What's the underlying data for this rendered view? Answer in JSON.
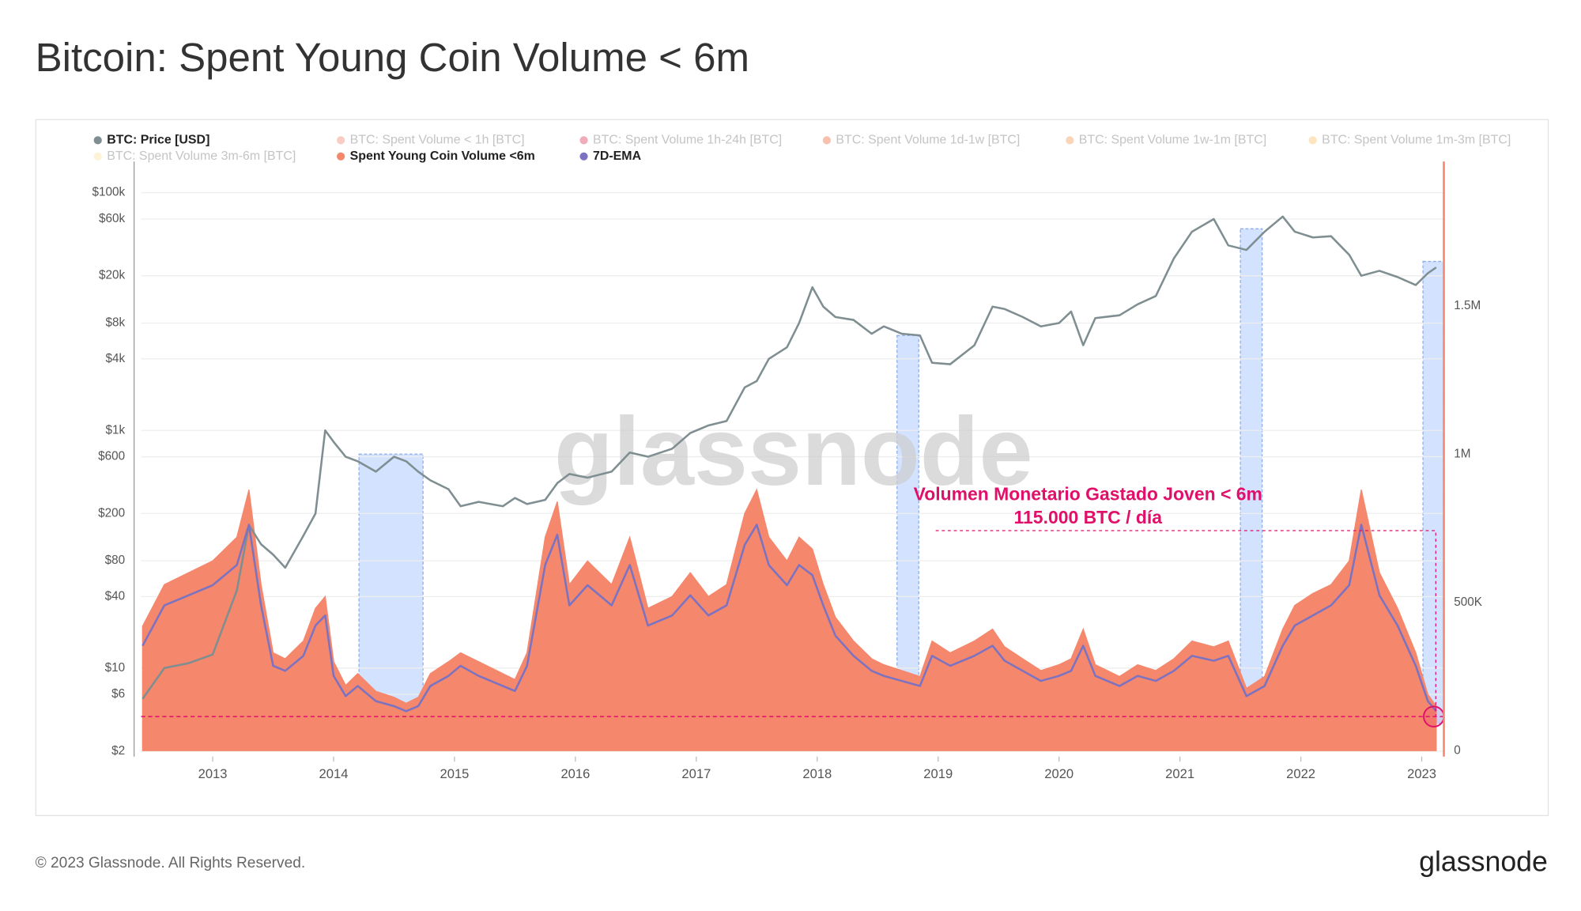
{
  "chart_data": {
    "type": "line",
    "title": "Bitcoin: Spent Young Coin Volume < 6m",
    "x": [
      2012.42,
      2012.6,
      2012.8,
      2013.0,
      2013.2,
      2013.3,
      2013.4,
      2013.5,
      2013.6,
      2013.75,
      2013.85,
      2013.93,
      2014.0,
      2014.1,
      2014.2,
      2014.35,
      2014.5,
      2014.6,
      2014.7,
      2014.8,
      2014.95,
      2015.05,
      2015.2,
      2015.4,
      2015.5,
      2015.6,
      2015.75,
      2015.85,
      2015.95,
      2016.1,
      2016.3,
      2016.45,
      2016.6,
      2016.8,
      2016.95,
      2017.1,
      2017.25,
      2017.4,
      2017.5,
      2017.6,
      2017.75,
      2017.85,
      2017.96,
      2018.05,
      2018.15,
      2018.3,
      2018.45,
      2018.55,
      2018.7,
      2018.85,
      2018.95,
      2019.1,
      2019.3,
      2019.45,
      2019.55,
      2019.7,
      2019.85,
      2020.0,
      2020.1,
      2020.2,
      2020.3,
      2020.5,
      2020.65,
      2020.8,
      2020.95,
      2021.1,
      2021.28,
      2021.4,
      2021.55,
      2021.7,
      2021.85,
      2021.95,
      2022.1,
      2022.25,
      2022.4,
      2022.5,
      2022.65,
      2022.8,
      2022.95,
      2023.05,
      2023.12
    ],
    "series": [
      {
        "name": "BTC: Price [USD]",
        "color": "#7f8e91",
        "kind": "line",
        "axis": "y",
        "values": [
          5.5,
          10,
          11,
          13,
          45,
          160,
          110,
          90,
          70,
          130,
          200,
          1000,
          800,
          600,
          550,
          450,
          600,
          550,
          450,
          380,
          320,
          230,
          250,
          230,
          270,
          240,
          260,
          360,
          430,
          400,
          450,
          650,
          600,
          700,
          950,
          1100,
          1200,
          2300,
          2600,
          4000,
          5000,
          8000,
          16000,
          11000,
          9000,
          8500,
          6500,
          7500,
          6500,
          6300,
          3700,
          3600,
          5200,
          11000,
          10500,
          9000,
          7500,
          8000,
          10000,
          5200,
          8800,
          9300,
          11500,
          13500,
          28000,
          47000,
          60000,
          36000,
          33000,
          47000,
          63000,
          47000,
          42000,
          43000,
          30000,
          20000,
          22000,
          19500,
          16700,
          21000,
          23500
        ]
      },
      {
        "name": "Spent Young Coin Volume <6m",
        "color": "#f4876c",
        "kind": "area",
        "axis": "y2",
        "values": [
          420000,
          560000,
          600000,
          640000,
          720000,
          880000,
          560000,
          330000,
          310000,
          370000,
          480000,
          520000,
          300000,
          220000,
          260000,
          200000,
          180000,
          160000,
          180000,
          260000,
          300000,
          330000,
          300000,
          260000,
          240000,
          330000,
          720000,
          840000,
          560000,
          640000,
          560000,
          720000,
          480000,
          520000,
          600000,
          520000,
          560000,
          800000,
          880000,
          720000,
          640000,
          720000,
          680000,
          560000,
          450000,
          370000,
          310000,
          290000,
          270000,
          250000,
          370000,
          330000,
          370000,
          410000,
          350000,
          310000,
          270000,
          290000,
          310000,
          410000,
          290000,
          250000,
          290000,
          270000,
          310000,
          370000,
          350000,
          370000,
          210000,
          250000,
          410000,
          490000,
          530000,
          560000,
          640000,
          880000,
          600000,
          480000,
          330000,
          190000,
          150000
        ]
      },
      {
        "name": "7D-EMA",
        "color": "#7b73c2",
        "kind": "line",
        "axis": "y2",
        "values": [
          354000,
          490000,
          524000,
          558000,
          626000,
          762000,
          490000,
          286000,
          269000,
          320000,
          422000,
          456000,
          252000,
          184000,
          218000,
          167000,
          150000,
          133000,
          150000,
          218000,
          252000,
          286000,
          252000,
          218000,
          201000,
          286000,
          626000,
          728000,
          490000,
          558000,
          490000,
          626000,
          422000,
          456000,
          524000,
          456000,
          490000,
          694000,
          762000,
          626000,
          558000,
          626000,
          592000,
          490000,
          388000,
          320000,
          269000,
          252000,
          235000,
          218000,
          320000,
          286000,
          320000,
          354000,
          303000,
          269000,
          235000,
          252000,
          269000,
          354000,
          252000,
          218000,
          252000,
          235000,
          269000,
          320000,
          303000,
          320000,
          184000,
          218000,
          354000,
          422000,
          456000,
          490000,
          558000,
          762000,
          524000,
          422000,
          286000,
          167000,
          133000
        ]
      }
    ],
    "hidden_series": [
      {
        "name": "BTC: Spent Volume < 1h [BTC]",
        "color": "#f2a494"
      },
      {
        "name": "BTC: Spent Volume 1h-24h [BTC]",
        "color": "#e36a7c"
      },
      {
        "name": "BTC: Spent Volume 1d-1w [BTC]",
        "color": "#f38c6e"
      },
      {
        "name": "BTC: Spent Volume 1w-1m [BTC]",
        "color": "#f8b27a"
      },
      {
        "name": "BTC: Spent Volume 1m-3m [BTC]",
        "color": "#fbd28a"
      },
      {
        "name": "BTC: Spent Volume 3m-6m [BTC]",
        "color": "#fde7b6"
      }
    ],
    "xlim": [
      2012.35,
      2023.183
    ],
    "xticks": [
      2013,
      2014,
      2015,
      2016,
      2017,
      2018,
      2019,
      2020,
      2021,
      2022,
      2023
    ],
    "ylim": [
      1.8,
      166000
    ],
    "log_y": true,
    "yticks": [
      {
        "value": 2,
        "label": "$2"
      },
      {
        "value": 6,
        "label": "$6"
      },
      {
        "value": 10,
        "label": "$10"
      },
      {
        "value": 40,
        "label": "$40"
      },
      {
        "value": 80,
        "label": "$80"
      },
      {
        "value": 200,
        "label": "$200"
      },
      {
        "value": 600,
        "label": "$600"
      },
      {
        "value": 1000,
        "label": "$1k"
      },
      {
        "value": 4000,
        "label": "$4k"
      },
      {
        "value": 8000,
        "label": "$8k"
      },
      {
        "value": 20000,
        "label": "$20k"
      },
      {
        "value": 60000,
        "label": "$60k"
      },
      {
        "value": 100000,
        "label": "$100k"
      }
    ],
    "y2lim": [
      -20000,
      1970000
    ],
    "y2ticks": [
      0,
      {
        "value": 500000,
        "label": "500K"
      },
      {
        "value": 1000000,
        "label": "1M"
      },
      {
        "value": 1500000,
        "label": "1.5M"
      }
    ],
    "grid": true,
    "legend": "top-left",
    "highlights": [
      {
        "x": [
          2014.21,
          2014.74
        ],
        "range": [
          92000,
          1000000
        ]
      },
      {
        "x": [
          2018.66,
          2018.84
        ],
        "range": [
          92000,
          1400000
        ]
      },
      {
        "x": [
          2021.5,
          2021.68
        ],
        "range": [
          92000,
          1760000
        ]
      },
      {
        "x": [
          2023.01,
          2023.18
        ],
        "range": [
          92000,
          1650000
        ]
      }
    ],
    "annotation": {
      "lines": [
        "Volumen Monetario Gastado Joven < 6m",
        "115.000 BTC / día"
      ],
      "value": 115000,
      "color": "#e0106a"
    },
    "watermark": "glassnode",
    "footer": {
      "copyright": "© 2023 Glassnode. All Rights Reserved.",
      "logo": "glassnode"
    }
  }
}
